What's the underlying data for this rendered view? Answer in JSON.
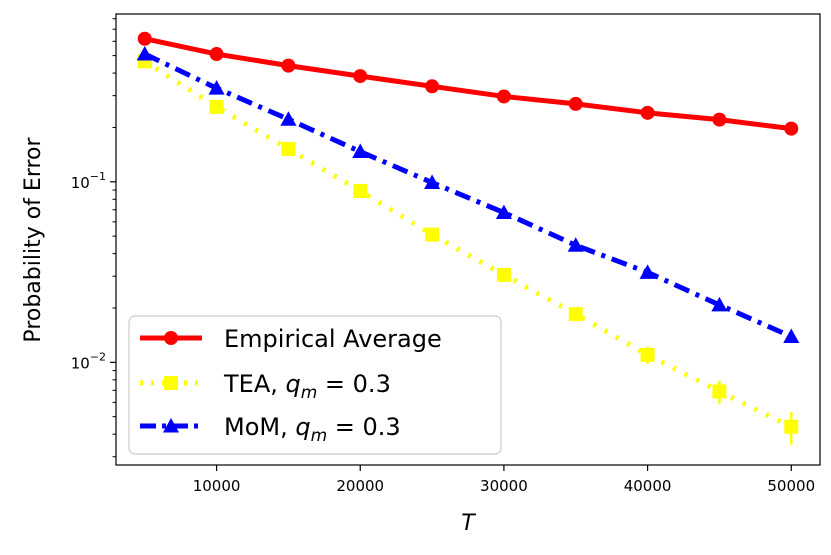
{
  "chart_data": {
    "type": "line",
    "xlabel": "T",
    "ylabel": "Probability of Error",
    "xlim": [
      3000,
      52000
    ],
    "ylim": [
      0.0027,
      0.85
    ],
    "yscale": "log",
    "grid": false,
    "legend_placement": "lower-left",
    "x": [
      5000,
      10000,
      15000,
      20000,
      25000,
      30000,
      35000,
      40000,
      45000,
      50000
    ],
    "x_ticks": [
      "10000",
      "20000",
      "30000",
      "40000",
      "50000"
    ],
    "y_ticks": [
      {
        "value": 0.1,
        "base": "10",
        "exp": "−1"
      },
      {
        "value": 0.01,
        "base": "10",
        "exp": "−2"
      }
    ],
    "series": [
      {
        "name": "Empirical Average",
        "legend_text": "Empirical Average",
        "color": "#ff0000",
        "marker": "circle",
        "linestyle": "solid",
        "values": [
          0.62,
          0.51,
          0.44,
          0.385,
          0.338,
          0.297,
          0.27,
          0.241,
          0.221,
          0.197
        ],
        "errors": [
          0,
          0,
          0,
          0,
          0,
          0,
          0,
          0,
          0,
          0
        ]
      },
      {
        "name": "TEA, q_m = 0.3",
        "legend_text": "TEA, ",
        "legend_math": {
          "var": "q",
          "sub": "m",
          "rest": " = 0.3"
        },
        "color": "#ffff00",
        "marker": "square",
        "linestyle": "dotted",
        "values": [
          0.465,
          0.26,
          0.152,
          0.089,
          0.051,
          0.0305,
          0.0185,
          0.011,
          0.0069,
          0.0044
        ],
        "errors": [
          0.02,
          0.012,
          0.006,
          0.004,
          0.002,
          0.0015,
          0.0015,
          0.0012,
          0.001,
          0.0009
        ]
      },
      {
        "name": "MoM, q_m = 0.3",
        "legend_text": "MoM, ",
        "legend_math": {
          "var": "q",
          "sub": "m",
          "rest": " = 0.3"
        },
        "color": "#0000ff",
        "marker": "triangle",
        "linestyle": "dashdot",
        "values": [
          0.51,
          0.33,
          0.222,
          0.147,
          0.099,
          0.0675,
          0.0445,
          0.0315,
          0.0208,
          0.0139
        ],
        "errors": [
          0,
          0,
          0,
          0,
          0,
          0,
          0,
          0,
          0,
          0.0007
        ]
      }
    ]
  }
}
